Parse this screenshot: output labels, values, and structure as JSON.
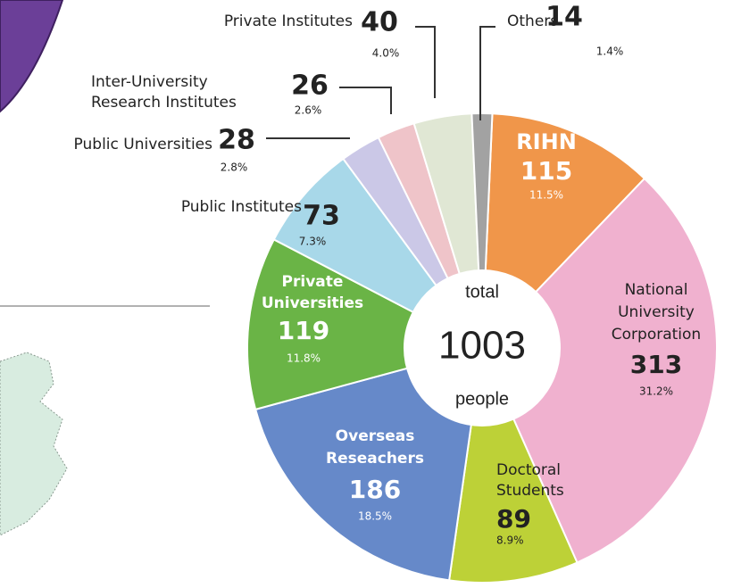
{
  "chart_data": {
    "type": "donut",
    "categories": [
      [
        "RIHN"
      ],
      [
        "National",
        "University",
        "Corporation"
      ],
      [
        "Doctoral",
        "Students"
      ],
      [
        "Overseas",
        "Reseachers"
      ],
      [
        "Private",
        "Universities"
      ],
      [
        "Public Institutes"
      ],
      [
        "Public Universities"
      ],
      [
        "Inter-University",
        "Research Institutes"
      ],
      [
        "Private Institutes"
      ],
      [
        "Others"
      ]
    ],
    "values": [
      115,
      313,
      89,
      186,
      119,
      73,
      28,
      26,
      40,
      14
    ],
    "percent_labels": [
      "11.5%",
      "31.2%",
      "8.9%",
      "18.5%",
      "11.8%",
      "7.3%",
      "2.8%",
      "2.6%",
      "4.0%",
      "1.4%"
    ],
    "colors": [
      "#f0964a",
      "#f0b1cf",
      "#bdd137",
      "#6689c9",
      "#6ab446",
      "#a8d8e9",
      "#cbc8e7",
      "#efc4c9",
      "#e0e7d4",
      "#a2a2a2"
    ],
    "center_text": [
      "total",
      "1003",
      "people"
    ]
  }
}
